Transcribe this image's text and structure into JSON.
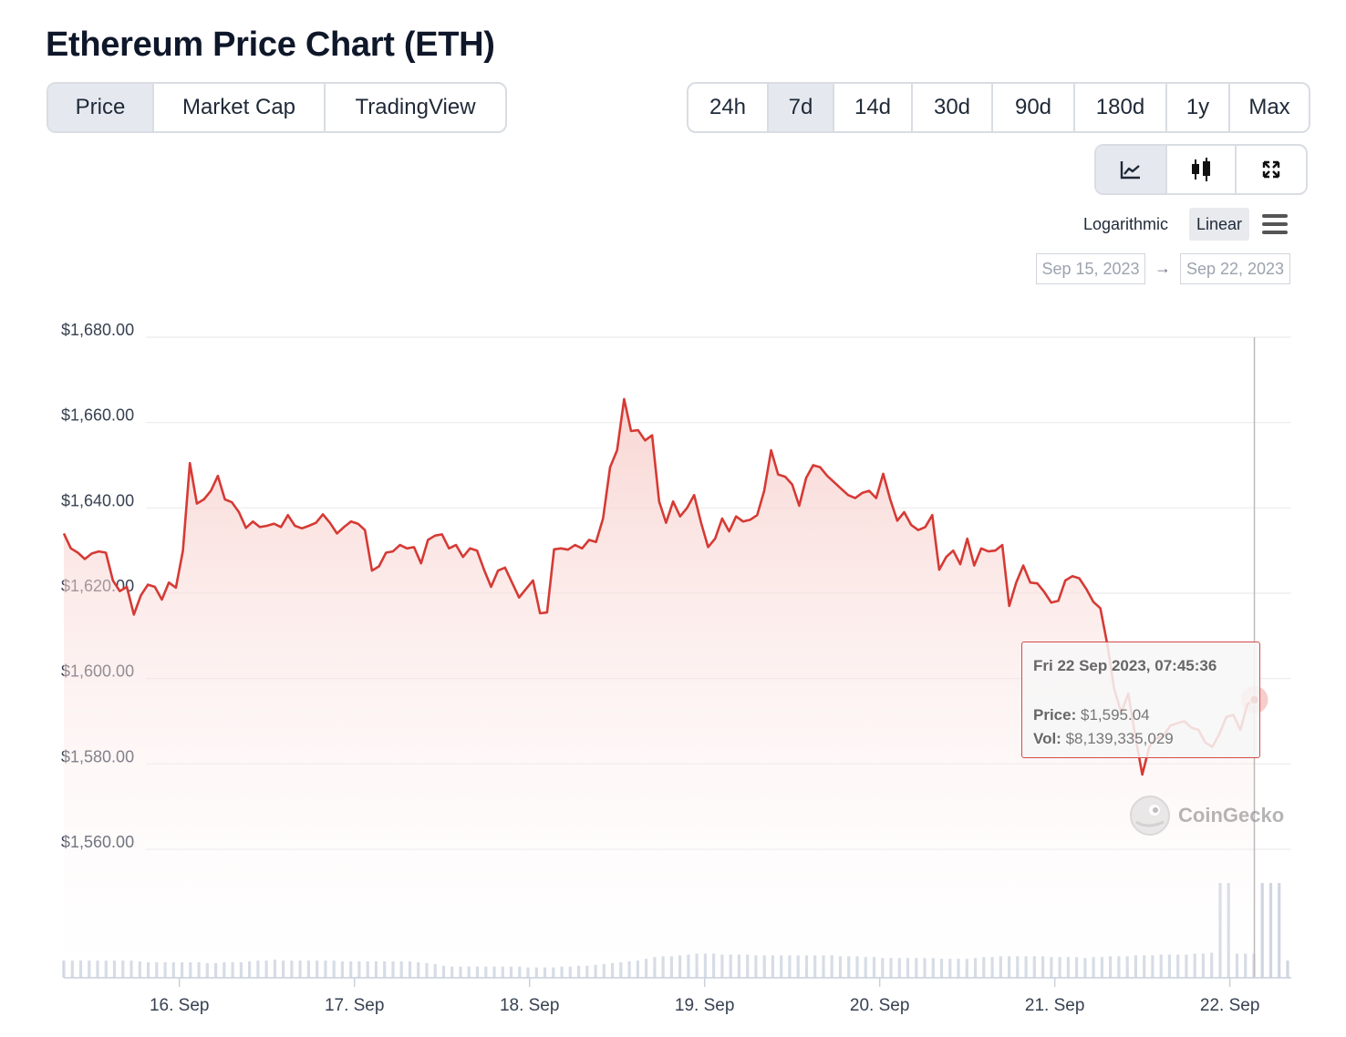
{
  "page": {
    "title": "Ethereum Price Chart (ETH)"
  },
  "view_tabs": [
    {
      "label": "Price",
      "active": true
    },
    {
      "label": "Market Cap",
      "active": false
    },
    {
      "label": "TradingView",
      "active": false
    }
  ],
  "range_tabs": [
    {
      "label": "24h",
      "active": false
    },
    {
      "label": "7d",
      "active": true
    },
    {
      "label": "14d",
      "active": false
    },
    {
      "label": "30d",
      "active": false
    },
    {
      "label": "90d",
      "active": false
    },
    {
      "label": "180d",
      "active": false
    },
    {
      "label": "1y",
      "active": false
    },
    {
      "label": "Max",
      "active": false
    }
  ],
  "chart_type_buttons": [
    {
      "icon": "line-chart-icon",
      "active": true
    },
    {
      "icon": "candlestick-icon",
      "active": false
    },
    {
      "icon": "expand-icon",
      "active": false
    }
  ],
  "scale": {
    "log_label": "Logarithmic",
    "linear_label": "Linear",
    "selected": "Linear"
  },
  "date_range": {
    "from": "Sep 15, 2023",
    "to": "Sep 22, 2023",
    "arrow": "→"
  },
  "tooltip": {
    "time": "Fri 22 Sep 2023, 07:45:36",
    "price_label": "Price:",
    "price_value": "$1,595.04",
    "vol_label": "Vol:",
    "vol_value": "$8,139,335,029"
  },
  "watermark": "CoinGecko",
  "colors": {
    "line": "#d63a35",
    "fill_top": "#f7d0cd",
    "grid": "#ececec",
    "volume": "#cfd6e1",
    "hover_line": "#bbbbbb"
  },
  "chart_data": {
    "type": "line",
    "title": "Ethereum Price Chart (ETH)",
    "x_unit": "days since 15 Sep 2023 00:00",
    "x_range": [
      0.34,
      7.33
    ],
    "y_range": [
      1555,
      1683
    ],
    "y_ticks": [
      1560,
      1580,
      1600,
      1620,
      1640,
      1660,
      1680
    ],
    "y_tick_labels": [
      "$1,560.00",
      "$1,580.00",
      "$1,600.00",
      "$1,620.00",
      "$1,640.00",
      "$1,660.00",
      "$1,680.00"
    ],
    "x_ticks": [
      1,
      2,
      3,
      4,
      5,
      6,
      7
    ],
    "x_tick_labels": [
      "16. Sep",
      "17. Sep",
      "18. Sep",
      "19. Sep",
      "20. Sep",
      "21. Sep",
      "22. Sep"
    ],
    "grid": true,
    "series": [
      {
        "name": "Price",
        "points": [
          [
            0.34,
            1634
          ],
          [
            0.38,
            1630.5
          ],
          [
            0.42,
            1629.5
          ],
          [
            0.46,
            1628
          ],
          [
            0.5,
            1629.3
          ],
          [
            0.54,
            1629.8
          ],
          [
            0.58,
            1629.5
          ],
          [
            0.62,
            1623
          ],
          [
            0.66,
            1620.5
          ],
          [
            0.7,
            1621.5
          ],
          [
            0.74,
            1615
          ],
          [
            0.78,
            1619.5
          ],
          [
            0.82,
            1622
          ],
          [
            0.86,
            1621.5
          ],
          [
            0.9,
            1618.5
          ],
          [
            0.94,
            1622.5
          ],
          [
            0.98,
            1621.3
          ],
          [
            1.02,
            1630
          ],
          [
            1.06,
            1650.5
          ],
          [
            1.1,
            1641
          ],
          [
            1.14,
            1642
          ],
          [
            1.18,
            1644
          ],
          [
            1.22,
            1647.5
          ],
          [
            1.26,
            1642
          ],
          [
            1.3,
            1641.3
          ],
          [
            1.34,
            1639
          ],
          [
            1.38,
            1635.3
          ],
          [
            1.42,
            1636.8
          ],
          [
            1.46,
            1635.5
          ],
          [
            1.5,
            1635.8
          ],
          [
            1.54,
            1636.3
          ],
          [
            1.58,
            1635.5
          ],
          [
            1.62,
            1638.3
          ],
          [
            1.66,
            1635.8
          ],
          [
            1.7,
            1635.2
          ],
          [
            1.74,
            1635.8
          ],
          [
            1.78,
            1636.5
          ],
          [
            1.82,
            1638.5
          ],
          [
            1.86,
            1636.5
          ],
          [
            1.9,
            1634
          ],
          [
            1.94,
            1635.5
          ],
          [
            1.98,
            1636.8
          ],
          [
            2.02,
            1636.3
          ],
          [
            2.06,
            1634.8
          ],
          [
            2.1,
            1625.3
          ],
          [
            2.14,
            1626.3
          ],
          [
            2.18,
            1629.5
          ],
          [
            2.22,
            1629.8
          ],
          [
            2.26,
            1631.3
          ],
          [
            2.3,
            1630.5
          ],
          [
            2.34,
            1630.8
          ],
          [
            2.38,
            1627
          ],
          [
            2.42,
            1632.5
          ],
          [
            2.46,
            1633.5
          ],
          [
            2.5,
            1633.8
          ],
          [
            2.54,
            1630.5
          ],
          [
            2.58,
            1631.3
          ],
          [
            2.62,
            1628.5
          ],
          [
            2.66,
            1630.5
          ],
          [
            2.7,
            1630
          ],
          [
            2.74,
            1625.5
          ],
          [
            2.78,
            1621.5
          ],
          [
            2.82,
            1625.3
          ],
          [
            2.86,
            1626
          ],
          [
            2.9,
            1622.5
          ],
          [
            2.94,
            1619
          ],
          [
            2.98,
            1621
          ],
          [
            3.02,
            1623
          ],
          [
            3.06,
            1615.3
          ],
          [
            3.1,
            1615.5
          ],
          [
            3.14,
            1630.3
          ],
          [
            3.18,
            1630.5
          ],
          [
            3.22,
            1630.2
          ],
          [
            3.26,
            1631.3
          ],
          [
            3.3,
            1630.5
          ],
          [
            3.34,
            1632.5
          ],
          [
            3.38,
            1632
          ],
          [
            3.42,
            1637.5
          ],
          [
            3.46,
            1649.5
          ],
          [
            3.5,
            1653.5
          ],
          [
            3.54,
            1665.5
          ],
          [
            3.58,
            1658
          ],
          [
            3.62,
            1658.2
          ],
          [
            3.66,
            1655.8
          ],
          [
            3.7,
            1657
          ],
          [
            3.74,
            1641.5
          ],
          [
            3.78,
            1636.5
          ],
          [
            3.82,
            1641.5
          ],
          [
            3.86,
            1638
          ],
          [
            3.9,
            1640
          ],
          [
            3.94,
            1643
          ],
          [
            3.98,
            1636.5
          ],
          [
            4.02,
            1630.8
          ],
          [
            4.06,
            1632.8
          ],
          [
            4.1,
            1637.5
          ],
          [
            4.14,
            1634.5
          ],
          [
            4.18,
            1638
          ],
          [
            4.22,
            1636.8
          ],
          [
            4.26,
            1637.2
          ],
          [
            4.3,
            1638.3
          ],
          [
            4.34,
            1644
          ],
          [
            4.38,
            1653.5
          ],
          [
            4.42,
            1647.8
          ],
          [
            4.46,
            1647.3
          ],
          [
            4.5,
            1645.5
          ],
          [
            4.54,
            1640.5
          ],
          [
            4.58,
            1647
          ],
          [
            4.62,
            1650
          ],
          [
            4.66,
            1649.5
          ],
          [
            4.7,
            1647.5
          ],
          [
            4.74,
            1646
          ],
          [
            4.78,
            1644.5
          ],
          [
            4.82,
            1643
          ],
          [
            4.86,
            1642.3
          ],
          [
            4.9,
            1643.5
          ],
          [
            4.94,
            1644
          ],
          [
            4.98,
            1642.3
          ],
          [
            5.02,
            1648
          ],
          [
            5.06,
            1642
          ],
          [
            5.1,
            1637
          ],
          [
            5.14,
            1639
          ],
          [
            5.18,
            1636
          ],
          [
            5.22,
            1634.8
          ],
          [
            5.26,
            1635.5
          ],
          [
            5.3,
            1638.3
          ],
          [
            5.34,
            1625.5
          ],
          [
            5.38,
            1628.5
          ],
          [
            5.42,
            1630
          ],
          [
            5.46,
            1626.8
          ],
          [
            5.5,
            1632.8
          ],
          [
            5.54,
            1626.5
          ],
          [
            5.58,
            1630.5
          ],
          [
            5.62,
            1629.8
          ],
          [
            5.66,
            1630
          ],
          [
            5.7,
            1631.3
          ],
          [
            5.74,
            1617
          ],
          [
            5.78,
            1622.5
          ],
          [
            5.82,
            1626.5
          ],
          [
            5.86,
            1622.5
          ],
          [
            5.9,
            1622.3
          ],
          [
            5.94,
            1620.3
          ],
          [
            5.98,
            1617.8
          ],
          [
            6.02,
            1618.2
          ],
          [
            6.06,
            1623
          ],
          [
            6.1,
            1624
          ],
          [
            6.14,
            1623.5
          ],
          [
            6.18,
            1621
          ],
          [
            6.22,
            1618
          ],
          [
            6.26,
            1616.5
          ],
          [
            6.3,
            1608
          ],
          [
            6.34,
            1597.5
          ],
          [
            6.38,
            1592
          ],
          [
            6.42,
            1596.5
          ],
          [
            6.46,
            1586.5
          ],
          [
            6.5,
            1577.5
          ],
          [
            6.54,
            1584
          ],
          [
            6.58,
            1586
          ],
          [
            6.62,
            1586.5
          ],
          [
            6.66,
            1589
          ],
          [
            6.7,
            1589.5
          ],
          [
            6.74,
            1590
          ],
          [
            6.78,
            1588.5
          ],
          [
            6.82,
            1588
          ],
          [
            6.86,
            1585
          ],
          [
            6.9,
            1584
          ],
          [
            6.94,
            1587
          ],
          [
            6.98,
            1591
          ],
          [
            7.02,
            1591.5
          ],
          [
            7.06,
            1588
          ],
          [
            7.1,
            1594
          ],
          [
            7.14,
            1595.04
          ]
        ]
      },
      {
        "name": "Volume (relative)",
        "values": [
          20,
          20,
          20,
          20,
          20,
          20,
          20,
          20,
          20,
          19,
          18,
          18,
          18,
          18,
          18,
          18,
          18,
          17,
          17,
          18,
          18,
          18,
          19,
          20,
          20,
          21,
          20,
          20,
          20,
          20,
          20,
          20,
          20,
          19,
          19,
          19,
          19,
          19,
          19,
          19,
          19,
          19,
          18,
          17,
          16,
          14,
          13,
          13,
          13,
          13,
          13,
          13,
          13,
          13,
          13,
          12,
          12,
          12,
          12,
          13,
          13,
          14,
          14,
          15,
          16,
          17,
          18,
          19,
          20,
          22,
          24,
          25,
          25,
          26,
          27,
          28,
          28,
          28,
          27,
          27,
          27,
          27,
          26,
          26,
          26,
          26,
          26,
          26,
          26,
          26,
          26,
          26,
          25,
          25,
          25,
          24,
          24,
          23,
          23,
          23,
          23,
          23,
          23,
          23,
          22,
          22,
          22,
          22,
          23,
          24,
          24,
          25,
          25,
          25,
          25,
          25,
          25,
          24,
          24,
          24,
          24,
          23,
          24,
          24,
          25,
          25,
          25,
          26,
          26,
          26,
          27,
          27,
          27,
          27,
          28,
          28,
          29,
          110,
          110,
          28,
          28,
          28,
          110,
          110,
          110,
          20
        ]
      }
    ],
    "hover": {
      "x": 7.14,
      "y": 1595.04
    }
  }
}
